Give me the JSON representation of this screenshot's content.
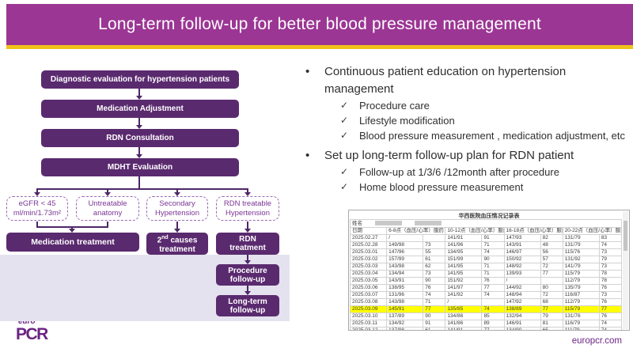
{
  "slide": {
    "title": "Long-term follow-up for better blood pressure management"
  },
  "glyphs": {
    "bullet": "•",
    "check": "✓"
  },
  "colors": {
    "banner_purple": "#9B3694",
    "gold": "#EFC319",
    "flow_box_purple": "#5A2A6F",
    "branch_purple": "#7B3596",
    "panel_lavender": "#E4E2EE",
    "brand_purple": "#6B2483",
    "highlight_yellow": "#FFFF00"
  },
  "flowchart": {
    "steps": [
      "Diagnostic evaluation for hypertension patients",
      "Medication Adjustment",
      "RDN Consultation",
      "MDHT Evaluation"
    ],
    "branches": [
      {
        "line1": "eGFR < 45",
        "line2": "ml/min/1.73m²"
      },
      {
        "line1": "Untreatable",
        "line2": "anatomy"
      },
      {
        "line1": "Secondary",
        "line2": "Hypertension"
      },
      {
        "line1": "RDN treatable",
        "line2": "Hypertension"
      }
    ],
    "outcomes": {
      "medication": "Medication treatment",
      "second_causes": {
        "base": "2",
        "sup": "nd",
        "rest": " causes",
        "line2": "treatment"
      },
      "rdn": {
        "line1": "RDN",
        "line2": "treatment"
      }
    },
    "followups": [
      {
        "line1": "Procedure",
        "line2": "follow-up"
      },
      {
        "line1": "Long-term",
        "line2": "follow-up"
      }
    ]
  },
  "bullets": [
    {
      "text": "Continuous patient education on hypertension management",
      "subs": [
        "Procedure care",
        "Lifestyle modification",
        "Blood pressure measurement , medication adjustment, etc"
      ]
    },
    {
      "text": "Set up long-term follow-up plan for RDN patient",
      "subs": [
        "Follow-up at 1/3/6 /12month after procedure",
        "Home blood pressure measurement"
      ]
    }
  ],
  "table": {
    "title": "华西医院血压情况记录表",
    "name_label": "姓名",
    "date_label": "日期",
    "group_headers": [
      "6-8点（血压/心率）服药",
      "10-12点（血压/心率）服药",
      "16-18点（血压/心率）服药",
      "20-22点（血压/心率）服药"
    ],
    "rows": [
      {
        "date": "2025.02.27",
        "cells": [
          [
            "/",
            ""
          ],
          [
            "141/91",
            "91"
          ],
          [
            "147/93",
            "82"
          ],
          [
            "131/79",
            "83"
          ]
        ],
        "highlight": false
      },
      {
        "date": "2025.02.28",
        "cells": [
          [
            "149/98",
            "73"
          ],
          [
            "141/96",
            "71"
          ],
          [
            "143/91",
            "48"
          ],
          [
            "131/79",
            "74"
          ]
        ],
        "highlight": false
      },
      {
        "date": "2025.03.01",
        "cells": [
          [
            "147/96",
            "55"
          ],
          [
            "134/95",
            "74"
          ],
          [
            "146/97",
            "56"
          ],
          [
            "115/76",
            "73"
          ]
        ],
        "highlight": false
      },
      {
        "date": "2025.03.02",
        "cells": [
          [
            "157/99",
            "61"
          ],
          [
            "151/99",
            "90"
          ],
          [
            "150/92",
            "57"
          ],
          [
            "131/92",
            "79"
          ]
        ],
        "highlight": false
      },
      {
        "date": "2025.03.03",
        "cells": [
          [
            "143/98",
            "62"
          ],
          [
            "141/95",
            "71"
          ],
          [
            "148/92",
            "72"
          ],
          [
            "141/79",
            "73"
          ]
        ],
        "highlight": false
      },
      {
        "date": "2025.03.04",
        "cells": [
          [
            "134/94",
            "73"
          ],
          [
            "141/95",
            "71"
          ],
          [
            "139/93",
            "77"
          ],
          [
            "115/79",
            "78"
          ]
        ],
        "highlight": false
      },
      {
        "date": "2025.03.05",
        "cells": [
          [
            "143/91",
            "90"
          ],
          [
            "151/92",
            "76"
          ],
          [
            "/",
            ""
          ],
          [
            "112/79",
            "78"
          ]
        ],
        "highlight": false
      },
      {
        "date": "2025.03.06",
        "cells": [
          [
            "138/95",
            "76"
          ],
          [
            "141/97",
            "77"
          ],
          [
            "144/92",
            "80"
          ],
          [
            "135/79",
            "76"
          ]
        ],
        "highlight": false
      },
      {
        "date": "2025.03.07",
        "cells": [
          [
            "131/96",
            "74"
          ],
          [
            "141/92",
            "74"
          ],
          [
            "148/94",
            "72"
          ],
          [
            "116/87",
            "73"
          ]
        ],
        "highlight": false
      },
      {
        "date": "2025.03.08",
        "cells": [
          [
            "143/98",
            "71"
          ],
          [
            "/",
            ""
          ],
          [
            "147/92",
            "68"
          ],
          [
            "112/79",
            "76"
          ]
        ],
        "highlight": false
      },
      {
        "date": "2025.03.09",
        "cells": [
          [
            "145/91",
            "77"
          ],
          [
            "135/85",
            "74"
          ],
          [
            "138/89",
            "77"
          ],
          [
            "115/79",
            "77"
          ]
        ],
        "highlight": true
      },
      {
        "date": "2025.03.10",
        "cells": [
          [
            "137/89",
            "90"
          ],
          [
            "134/86",
            "85"
          ],
          [
            "132/94",
            "79"
          ],
          [
            "131/76",
            "76"
          ]
        ],
        "highlight": false
      },
      {
        "date": "2025.03.11",
        "cells": [
          [
            "134/92",
            "91"
          ],
          [
            "141/86",
            "89"
          ],
          [
            "146/91",
            "81"
          ],
          [
            "116/79",
            "74"
          ]
        ],
        "highlight": false
      },
      {
        "date": "2025.03.12",
        "cells": [
          [
            "137/98",
            "61"
          ],
          [
            "141/91",
            "77"
          ],
          [
            "134/90",
            "65"
          ],
          [
            "111/79",
            "74"
          ]
        ],
        "highlight": false
      }
    ]
  },
  "footer": {
    "logo_top": "euro",
    "logo_main": "PCR",
    "website": "europcr.com"
  }
}
